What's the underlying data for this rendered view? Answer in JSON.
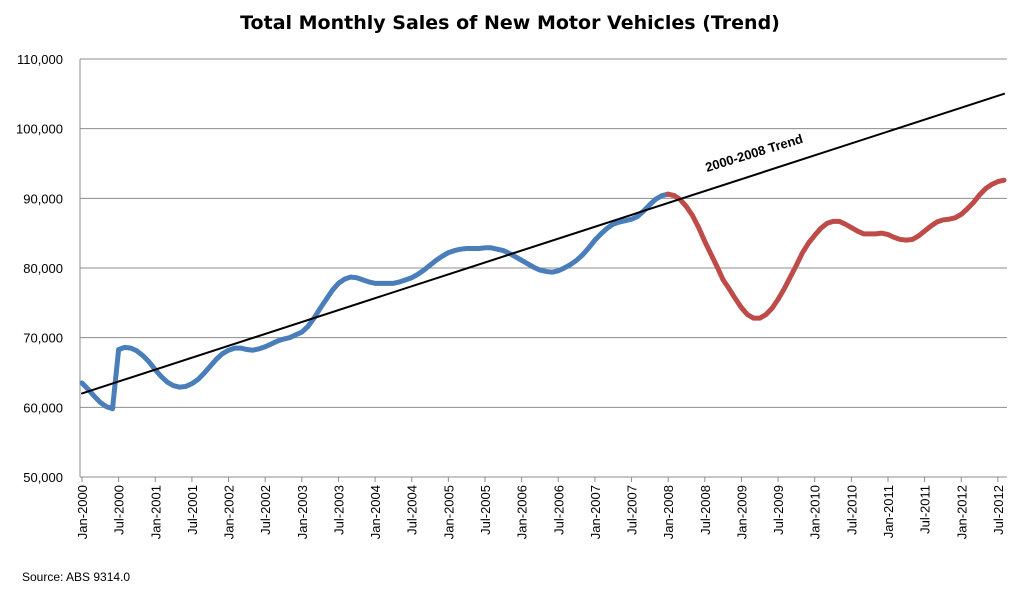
{
  "chart_data": {
    "type": "line",
    "title": "Total Monthly Sales of New Motor Vehicles (Trend)",
    "source": "Source: ABS 9314.0",
    "xlabel": "",
    "ylabel": "",
    "ylim": [
      50000,
      110000
    ],
    "y_ticks": [
      "50,000",
      "60,000",
      "70,000",
      "80,000",
      "90,000",
      "100,000",
      "110,000"
    ],
    "y_tick_values": [
      50000,
      60000,
      70000,
      80000,
      90000,
      100000,
      110000
    ],
    "x_start": "Jan-2000",
    "x_end": "Aug-2012",
    "x_tick_labels": [
      "Jan-2000",
      "Jul-2000",
      "Jan-2001",
      "Jul-2001",
      "Jan-2002",
      "Jul-2002",
      "Jan-2003",
      "Jul-2003",
      "Jan-2004",
      "Jul-2004",
      "Jan-2005",
      "Jul-2005",
      "Jan-2006",
      "Jul-2006",
      "Jan-2007",
      "Jul-2007",
      "Jan-2008",
      "Jul-2008",
      "Jan-2009",
      "Jul-2009",
      "Jan-2010",
      "Jul-2010",
      "Jan-2011",
      "Jul-2011",
      "Jan-2012",
      "Jul-2012"
    ],
    "grid": true,
    "legend": "none",
    "series": [
      {
        "color": "#4a7ebb",
        "start": "Jan-2000",
        "values": [
          63500,
          62600,
          61600,
          60700,
          60100,
          59800,
          68300,
          68600,
          68500,
          68100,
          67400,
          66500,
          65400,
          64400,
          63600,
          63100,
          62900,
          63000,
          63400,
          64000,
          64900,
          65900,
          66900,
          67700,
          68200,
          68500,
          68500,
          68300,
          68200,
          68400,
          68700,
          69100,
          69500,
          69800,
          70000,
          70400,
          70800,
          71600,
          72800,
          74200,
          75500,
          76800,
          77800,
          78400,
          78700,
          78600,
          78300,
          78000,
          77800,
          77800,
          77800,
          77800,
          78000,
          78300,
          78600,
          79100,
          79700,
          80400,
          81100,
          81700,
          82200,
          82500,
          82700,
          82800,
          82800,
          82800,
          82900,
          82900,
          82700,
          82500,
          82100,
          81600,
          81100,
          80600,
          80100,
          79700,
          79500,
          79400,
          79600,
          80000,
          80500,
          81100,
          81900,
          82900,
          84000,
          84900,
          85700,
          86300,
          86600,
          86800,
          87000,
          87400,
          88200,
          89100,
          89900,
          90400,
          90600
        ]
      },
      {
        "color": "#be4b48",
        "start": "Jan-2008",
        "values": [
          90600,
          90400,
          89800,
          88800,
          87500,
          85800,
          83800,
          82000,
          80200,
          78300,
          77000,
          75600,
          74300,
          73300,
          72800,
          72800,
          73300,
          74200,
          75500,
          77000,
          78700,
          80400,
          82200,
          83600,
          84700,
          85700,
          86400,
          86700,
          86700,
          86300,
          85800,
          85300,
          84900,
          84900,
          84900,
          85000,
          84800,
          84400,
          84100,
          84000,
          84100,
          84600,
          85300,
          86000,
          86600,
          86900,
          87000,
          87200,
          87700,
          88500,
          89400,
          90500,
          91400,
          92000,
          92400,
          92600
        ]
      },
      {
        "name": "2000-2008 Trend",
        "color": "#000000",
        "start": "Jan-2000",
        "end": "Aug-2012",
        "values": [
          62000,
          105000
        ]
      }
    ]
  }
}
